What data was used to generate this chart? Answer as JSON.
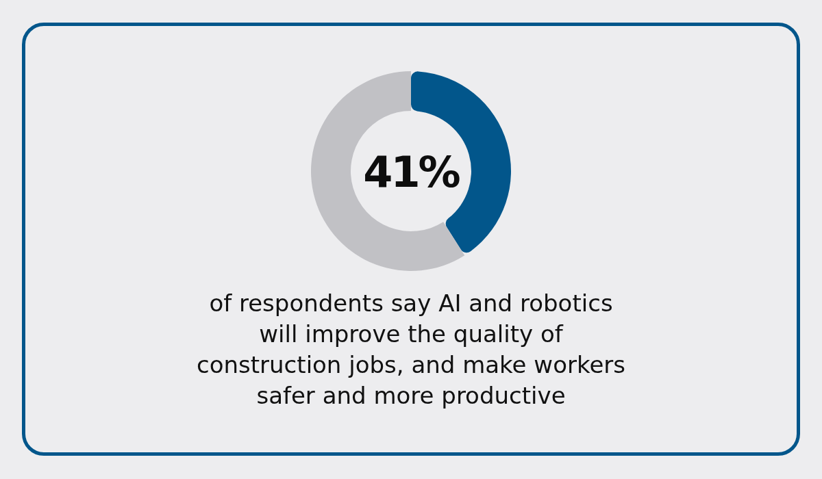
{
  "chart_data": {
    "type": "donut",
    "categories": [
      null,
      null
    ],
    "values": [
      41,
      59
    ],
    "colors": [
      "#02568b",
      "#c1c1c5"
    ],
    "annotations": [
      "41%",
      "of respondents say AI and robotics\nwill improve the quality of\nconstruction jobs, and make workers\nsafer and more productive"
    ]
  }
}
